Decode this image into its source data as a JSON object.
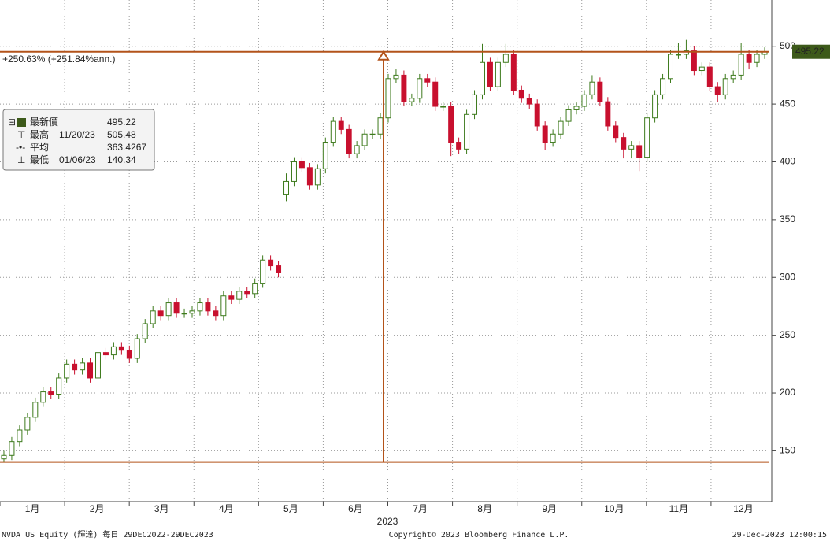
{
  "chart_data": {
    "type": "candlestick",
    "ylim": [
      106,
      540
    ],
    "yticks": [
      150,
      200,
      250,
      300,
      350,
      400,
      450,
      500
    ],
    "grid": true,
    "months": [
      "1月",
      "2月",
      "3月",
      "4月",
      "5月",
      "6月",
      "7月",
      "8月",
      "9月",
      "10月",
      "11月",
      "12月"
    ],
    "year": "2023",
    "up_color": "#3d7a1c",
    "down_color": "#c8102e",
    "annotation_color": "#b3531a",
    "performance": "+250.63% (+251.84%ann.)",
    "stats": {
      "last_label": "最新價",
      "last": 495.22,
      "high_label": "最高",
      "high_date": "11/20/23",
      "high": 505.48,
      "average_label": "平均",
      "average": 363.4267,
      "low_label": "最低",
      "low_date": "01/06/23",
      "low": 140.34
    },
    "footer_left": "NVDA US Equity (輝達)  每日 29DEC2022-29DEC2023",
    "footer_center": "Copyright© 2023 Bloomberg Finance L.P.",
    "footer_right": "29-Dec-2023 12:00:15",
    "open": [
      143,
      146,
      158,
      168,
      179,
      192,
      201,
      199,
      213,
      225,
      220,
      226,
      213,
      235,
      233,
      240,
      237,
      230,
      247,
      260,
      271,
      267,
      278,
      269,
      269,
      271,
      278,
      271,
      267,
      284,
      281,
      288,
      286,
      295,
      315,
      310,
      372,
      383,
      400,
      395,
      380,
      394,
      417,
      435,
      428,
      407,
      414,
      424,
      424,
      438,
      472,
      475,
      452,
      455,
      472,
      469,
      448,
      448,
      417,
      411,
      441,
      458,
      486,
      465,
      486,
      493,
      462,
      455,
      450,
      431,
      417,
      424,
      435,
      445,
      448,
      458,
      469,
      452,
      431,
      421,
      411,
      414,
      404,
      438,
      458,
      472,
      493,
      493,
      496,
      479,
      482,
      465,
      458,
      472,
      475,
      493,
      486,
      493
    ],
    "high": [
      150,
      162,
      172,
      183,
      196,
      205,
      205,
      217,
      229,
      229,
      230,
      230,
      239,
      239,
      244,
      244,
      241,
      251,
      264,
      275,
      275,
      282,
      282,
      273,
      275,
      282,
      282,
      275,
      288,
      288,
      292,
      292,
      299,
      319,
      319,
      314,
      390,
      404,
      404,
      399,
      398,
      421,
      439,
      439,
      432,
      418,
      428,
      428,
      442,
      476,
      480,
      479,
      459,
      476,
      476,
      473,
      452,
      452,
      421,
      445,
      462,
      502,
      490,
      490,
      502,
      497,
      466,
      459,
      454,
      435,
      428,
      439,
      449,
      452,
      462,
      475,
      473,
      456,
      435,
      425,
      418,
      418,
      442,
      462,
      476,
      497,
      503,
      505.48,
      500,
      486,
      486,
      469,
      476,
      479,
      503,
      497,
      497,
      499
    ],
    "low": [
      140.34,
      142,
      154,
      164,
      175,
      188,
      195,
      195,
      209,
      216,
      216,
      209,
      209,
      229,
      229,
      233,
      226,
      226,
      243,
      256,
      263,
      263,
      265,
      265,
      265,
      267,
      267,
      263,
      263,
      277,
      277,
      282,
      282,
      291,
      306,
      300,
      366,
      379,
      391,
      376,
      376,
      390,
      413,
      424,
      403,
      403,
      410,
      420,
      420,
      434,
      468,
      448,
      448,
      451,
      465,
      444,
      444,
      405,
      407,
      407,
      437,
      454,
      461,
      461,
      482,
      458,
      451,
      446,
      427,
      410,
      413,
      420,
      431,
      441,
      444,
      454,
      448,
      427,
      417,
      403,
      403,
      392,
      400,
      434,
      454,
      468,
      489,
      489,
      475,
      475,
      461,
      452,
      454,
      468,
      471,
      480,
      482,
      489
    ],
    "close": [
      146,
      158,
      168,
      179,
      192,
      201,
      199,
      213,
      225,
      220,
      226,
      213,
      235,
      233,
      240,
      237,
      230,
      247,
      260,
      271,
      267,
      278,
      269,
      269,
      271,
      278,
      271,
      267,
      284,
      281,
      288,
      286,
      295,
      315,
      310,
      304,
      383,
      400,
      395,
      380,
      394,
      417,
      435,
      428,
      407,
      414,
      424,
      424,
      438,
      472,
      475,
      452,
      455,
      472,
      469,
      448,
      448,
      417,
      411,
      441,
      458,
      486,
      465,
      486,
      493,
      462,
      455,
      450,
      431,
      417,
      424,
      435,
      445,
      448,
      458,
      469,
      452,
      431,
      421,
      411,
      414,
      404,
      438,
      458,
      472,
      493,
      493,
      496,
      479,
      482,
      465,
      458,
      472,
      475,
      493,
      486,
      493,
      495.22
    ]
  }
}
